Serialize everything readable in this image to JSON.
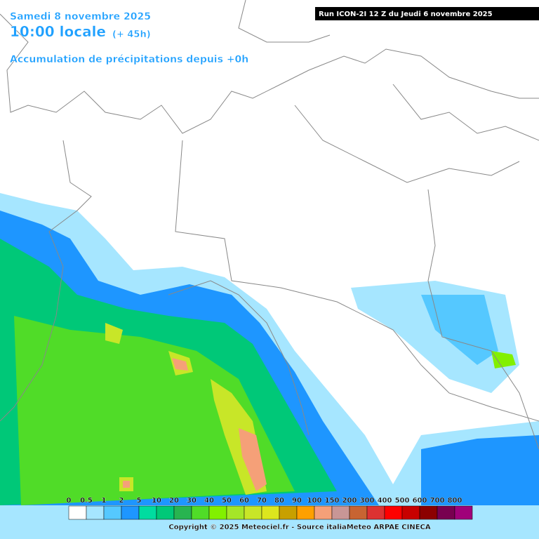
{
  "header": {
    "date": "Samedi 8 novembre 2025",
    "time": "10:00 locale",
    "lead": "(+ 45h)",
    "subtitle": "Accumulation de précipitations depuis +0h",
    "run": "Run ICON-2I 12 Z du Jeudi 6 novembre 2025"
  },
  "legend": {
    "items": [
      {
        "label": 0,
        "color": "#ffffff"
      },
      {
        "label": 0.5,
        "color": "#a6e6ff"
      },
      {
        "label": 1,
        "color": "#55c8ff"
      },
      {
        "label": 2,
        "color": "#1e96ff"
      },
      {
        "label": 5,
        "color": "#00dca0"
      },
      {
        "label": 10,
        "color": "#00c878"
      },
      {
        "label": 20,
        "color": "#28b450"
      },
      {
        "label": 30,
        "color": "#50dc28"
      },
      {
        "label": 40,
        "color": "#82f000"
      },
      {
        "label": 50,
        "color": "#a5e628"
      },
      {
        "label": 60,
        "color": "#c8e628"
      },
      {
        "label": 70,
        "color": "#dce61e"
      },
      {
        "label": 80,
        "color": "#c8a000"
      },
      {
        "label": 90,
        "color": "#ffa000"
      },
      {
        "label": 100,
        "color": "#f5a078"
      },
      {
        "label": 150,
        "color": "#c89696"
      },
      {
        "label": 200,
        "color": "#c86432"
      },
      {
        "label": 300,
        "color": "#dc3232"
      },
      {
        "label": 400,
        "color": "#ff0000"
      },
      {
        "label": 500,
        "color": "#c80000"
      },
      {
        "label": 600,
        "color": "#8c0000"
      },
      {
        "label": 700,
        "color": "#780050"
      },
      {
        "label": 800,
        "color": "#a0007a"
      }
    ]
  },
  "footer": {
    "copyright": "Copyright © 2025 Meteociel.fr - Source italiaMeteo ARPAE CINECA"
  }
}
